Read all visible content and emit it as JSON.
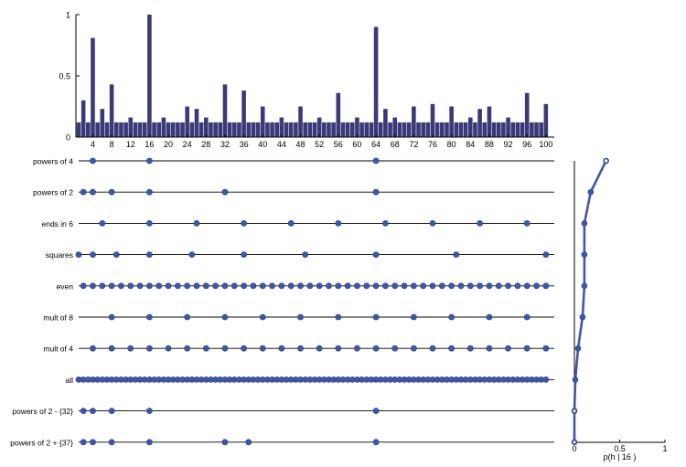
{
  "chart_data": [
    {
      "type": "bar",
      "x_range": [
        1,
        100
      ],
      "ylim": [
        0,
        1
      ],
      "yticks": [
        "0",
        "0.5",
        "1"
      ],
      "xticks": [
        "4",
        "8",
        "12",
        "16",
        "20",
        "24",
        "28",
        "32",
        "36",
        "40",
        "44",
        "48",
        "52",
        "56",
        "60",
        "64",
        "68",
        "72",
        "76",
        "80",
        "84",
        "88",
        "92",
        "96",
        "100"
      ],
      "bar_color": "#3a3a78",
      "values": [
        0.12,
        0.3,
        0.12,
        0.81,
        0.12,
        0.23,
        0.12,
        0.43,
        0.12,
        0.12,
        0.12,
        0.16,
        0.12,
        0.12,
        0.12,
        1.0,
        0.12,
        0.12,
        0.16,
        0.12,
        0.12,
        0.12,
        0.12,
        0.25,
        0.12,
        0.23,
        0.12,
        0.16,
        0.12,
        0.12,
        0.12,
        0.43,
        0.12,
        0.12,
        0.12,
        0.38,
        0.12,
        0.12,
        0.12,
        0.25,
        0.12,
        0.12,
        0.12,
        0.16,
        0.12,
        0.12,
        0.12,
        0.25,
        0.12,
        0.12,
        0.12,
        0.16,
        0.12,
        0.12,
        0.12,
        0.36,
        0.12,
        0.12,
        0.12,
        0.16,
        0.12,
        0.12,
        0.12,
        0.9,
        0.12,
        0.23,
        0.12,
        0.16,
        0.12,
        0.12,
        0.12,
        0.25,
        0.12,
        0.12,
        0.12,
        0.27,
        0.12,
        0.12,
        0.12,
        0.25,
        0.12,
        0.12,
        0.12,
        0.16,
        0.12,
        0.23,
        0.12,
        0.25,
        0.12,
        0.12,
        0.12,
        0.16,
        0.12,
        0.12,
        0.12,
        0.36,
        0.12,
        0.12,
        0.12,
        0.27
      ]
    },
    {
      "type": "scatter",
      "x_range": [
        1,
        100
      ],
      "dot_color": "#3f57a8",
      "line_color": "#000000",
      "rows": [
        {
          "label": "powers of 4",
          "x": [
            4,
            16,
            64
          ]
        },
        {
          "label": "powers of 2",
          "x": [
            2,
            4,
            8,
            16,
            32,
            64
          ]
        },
        {
          "label": "ends in 6",
          "x": [
            6,
            16,
            26,
            36,
            46,
            56,
            66,
            76,
            86,
            96
          ]
        },
        {
          "label": "squares",
          "x": [
            1,
            4,
            9,
            16,
            25,
            36,
            49,
            64,
            81,
            100
          ]
        },
        {
          "label": "even",
          "rule": "even"
        },
        {
          "label": "mult of 8",
          "x": [
            8,
            16,
            24,
            32,
            40,
            48,
            56,
            64,
            72,
            80,
            88,
            96
          ]
        },
        {
          "label": "mult of 4",
          "rule": "mult4"
        },
        {
          "label": "all",
          "rule": "all"
        },
        {
          "label": "powers of 2 - {32}",
          "x": [
            2,
            4,
            8,
            16,
            64
          ]
        },
        {
          "label": "powers of 2 + {37}",
          "x": [
            2,
            4,
            8,
            16,
            32,
            37,
            64
          ]
        }
      ]
    },
    {
      "type": "line",
      "xlabel": "p(h | 16 )",
      "xlim": [
        0,
        1
      ],
      "xticks": [
        "0",
        "0.5",
        "1"
      ],
      "values": [
        0.35,
        0.18,
        0.11,
        0.11,
        0.11,
        0.09,
        0.04,
        0.01,
        0.0,
        0.0
      ],
      "line_color": "#3f57a8"
    }
  ]
}
